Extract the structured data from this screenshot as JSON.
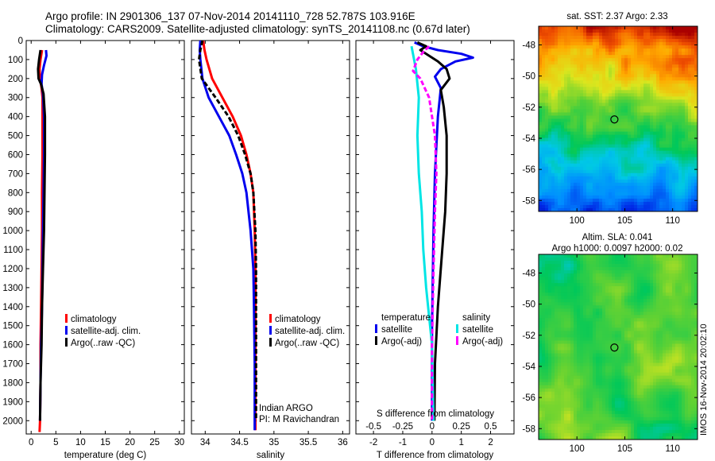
{
  "header": {
    "line1": "Argo profile: IN 2901306_137 07-Nov-2014 20141110_728 52.787S 103.916E",
    "line2": "Climatology: CARS2009. Satellite-adjusted climatology: synTS_20141108.nc (0.67d later)"
  },
  "colors": {
    "climatology": "#ff0000",
    "satellite_adj": "#0000ee",
    "argo": "#000000",
    "salinity_sat": "#00e5e5",
    "salinity_argo": "#ff00ff"
  },
  "chart_data": [
    {
      "id": "temperature",
      "type": "line",
      "xlabel": "temperature (deg C)",
      "xlim": [
        -1,
        31
      ],
      "ylim": [
        0,
        2070
      ],
      "y_inverted": true,
      "xticks": [
        0,
        5,
        10,
        15,
        20,
        25,
        30
      ],
      "yticks": [
        0,
        100,
        200,
        300,
        400,
        500,
        600,
        700,
        800,
        900,
        1000,
        1100,
        1200,
        1300,
        1400,
        1500,
        1600,
        1700,
        1800,
        1900,
        2000
      ],
      "legend": [
        "climatology",
        "satellite-adj. clim.",
        "Argo(..raw -QC)"
      ],
      "series": [
        {
          "name": "climatology",
          "color": "#ff0000",
          "dash": "",
          "x": [
            2.2,
            1.9,
            1.7,
            1.8,
            2.1,
            2.3,
            2.3,
            2.3,
            2.2,
            2.2,
            2.1,
            2.0,
            1.9,
            1.9,
            1.8,
            1.7
          ],
          "y": [
            50,
            100,
            150,
            200,
            250,
            300,
            400,
            600,
            800,
            1000,
            1200,
            1400,
            1600,
            1800,
            2000,
            2060
          ]
        },
        {
          "name": "satellite-adj. clim.",
          "color": "#0000ee",
          "dash": "",
          "x": [
            3.0,
            3.1,
            2.6,
            2.2,
            2.1,
            2.4,
            2.6,
            2.6,
            2.5,
            2.4,
            2.3,
            2.2,
            2.0,
            1.9,
            1.8
          ],
          "y": [
            50,
            80,
            130,
            180,
            230,
            280,
            400,
            600,
            800,
            1000,
            1200,
            1400,
            1600,
            1800,
            2000
          ]
        },
        {
          "name": "Argo(..raw -QC)",
          "color": "#000000",
          "dash": "",
          "x": [
            1.9,
            1.6,
            1.4,
            1.5,
            2.0,
            2.5,
            2.8,
            2.8,
            2.7,
            2.6,
            2.4,
            2.2,
            2.1,
            1.9,
            1.8
          ],
          "y": [
            50,
            100,
            150,
            200,
            230,
            280,
            400,
            600,
            800,
            1000,
            1200,
            1400,
            1600,
            1800,
            2000
          ]
        }
      ]
    },
    {
      "id": "salinity",
      "type": "line",
      "xlabel": "salinity",
      "xlim": [
        33.8,
        36.1
      ],
      "ylim": [
        0,
        2070
      ],
      "y_inverted": true,
      "xticks": [
        34,
        34.5,
        35,
        35.5,
        36
      ],
      "legend": [
        "climatology",
        "satellite-adj. clim.",
        "Argo(..raw -QC)"
      ],
      "annotation": [
        "Indian ARGO",
        "PI: M Ravichandran"
      ],
      "series": [
        {
          "name": "climatology",
          "color": "#ff0000",
          "dash": "",
          "x": [
            33.97,
            33.99,
            34.02,
            34.1,
            34.25,
            34.4,
            34.52,
            34.6,
            34.66,
            34.7,
            34.72,
            34.73,
            34.73,
            34.73,
            34.73
          ],
          "y": [
            0,
            50,
            100,
            200,
            300,
            400,
            500,
            600,
            700,
            800,
            1000,
            1200,
            1400,
            1700,
            2050
          ]
        },
        {
          "name": "satellite-adj. clim.",
          "color": "#0000ee",
          "dash": "",
          "x": [
            33.93,
            33.92,
            33.93,
            33.96,
            34.05,
            34.2,
            34.35,
            34.45,
            34.54,
            34.6,
            34.66,
            34.7,
            34.71,
            34.72,
            34.72
          ],
          "y": [
            0,
            50,
            100,
            200,
            300,
            400,
            500,
            600,
            700,
            800,
            1000,
            1200,
            1400,
            1700,
            2050
          ]
        },
        {
          "name": "Argo(..raw -QC)",
          "color": "#000000",
          "dash": "6,3",
          "x": [
            33.96,
            33.93,
            33.91,
            33.95,
            34.15,
            34.34,
            34.48,
            34.58,
            34.66,
            34.7,
            34.73,
            34.74,
            34.74,
            34.74,
            34.74
          ],
          "y": [
            0,
            50,
            100,
            200,
            300,
            400,
            500,
            600,
            700,
            800,
            1000,
            1200,
            1400,
            1700,
            2000
          ]
        }
      ]
    },
    {
      "id": "difference",
      "type": "line",
      "xlabel": "T difference from climatology",
      "xlabel_top": "S difference from climatology",
      "xlim": [
        -2.6,
        2.8
      ],
      "ylim": [
        0,
        2070
      ],
      "y_inverted": true,
      "xticks": [
        -2,
        -1,
        0,
        1,
        2
      ],
      "xticks_s": [
        {
          "label": "-0.5",
          "at": -2
        },
        {
          "label": "-0.25",
          "at": -1
        },
        {
          "label": "0",
          "at": 0
        },
        {
          "label": "0.25",
          "at": 1
        },
        {
          "label": "0.5",
          "at": 2
        }
      ],
      "legend": {
        "temperature_title": "temperature",
        "salinity_title": "salinity",
        "temperature": [
          "satellite",
          "Argo(-adj)"
        ],
        "salinity": [
          "satellite",
          "Argo(-adj)"
        ]
      },
      "series": [
        {
          "name": "temperature satellite",
          "color": "#0000ee",
          "dash": "",
          "x": [
            -0.6,
            -0.3,
            0.2,
            1.0,
            1.4,
            0.8,
            0.3,
            0.1,
            0.3,
            0.2,
            0.1,
            0.05,
            0.0,
            0.0
          ],
          "y": [
            10,
            30,
            50,
            70,
            90,
            110,
            150,
            190,
            250,
            400,
            700,
            1000,
            1500,
            2000
          ]
        },
        {
          "name": "temperature Argo(-adj)",
          "color": "#000000",
          "dash": "",
          "x": [
            -0.5,
            -0.2,
            -0.4,
            -0.1,
            0.2,
            0.5,
            0.6,
            0.3,
            0.4,
            0.5,
            0.5,
            0.45,
            0.35,
            0.2,
            0.1,
            0.08
          ],
          "y": [
            10,
            30,
            50,
            80,
            110,
            150,
            200,
            260,
            350,
            500,
            700,
            900,
            1100,
            1400,
            1700,
            2000
          ]
        },
        {
          "name": "salinity satellite",
          "color": "#00e5e5",
          "dash": "",
          "x": [
            -0.7,
            -0.55,
            -0.45,
            -0.5,
            -0.45,
            -0.35,
            -0.3,
            -0.2,
            0.0,
            0.05
          ],
          "y": [
            30,
            150,
            300,
            500,
            700,
            900,
            1100,
            1300,
            1600,
            2000
          ]
        },
        {
          "name": "salinity Argo(-adj)",
          "color": "#ff00ff",
          "dash": "6,3",
          "x": [
            -0.1,
            -0.3,
            -0.5,
            -0.65,
            -0.4,
            -0.1,
            0.1,
            0.15,
            0.1,
            0.05,
            0.0,
            0.0
          ],
          "y": [
            30,
            60,
            100,
            160,
            200,
            300,
            500,
            700,
            900,
            1200,
            1600,
            2000
          ]
        }
      ]
    },
    {
      "id": "sst_map",
      "type": "heatmap",
      "title": "sat. SST: 2.37  Argo: 2.33",
      "xlim": [
        96,
        112.6
      ],
      "ylim": [
        -58.7,
        -46.8
      ],
      "xticks": [
        100,
        105,
        110
      ],
      "yticks": [
        -48,
        -50,
        -52,
        -54,
        -56,
        -58
      ],
      "marker": {
        "lon": 103.916,
        "lat": -52.787
      }
    },
    {
      "id": "sla_map",
      "type": "heatmap",
      "title": "Altim. SLA: 0.041",
      "subtitle": "Argo h1000: 0.0097  h2000: 0.02",
      "xlim": [
        96,
        112.6
      ],
      "ylim": [
        -58.7,
        -46.8
      ],
      "xticks": [
        100,
        105,
        110
      ],
      "yticks": [
        -48,
        -50,
        -52,
        -54,
        -56,
        -58
      ],
      "marker": {
        "lon": 103.916,
        "lat": -52.787
      }
    }
  ],
  "stamp": "IMOS 16-Nov-2014 20:02:10"
}
